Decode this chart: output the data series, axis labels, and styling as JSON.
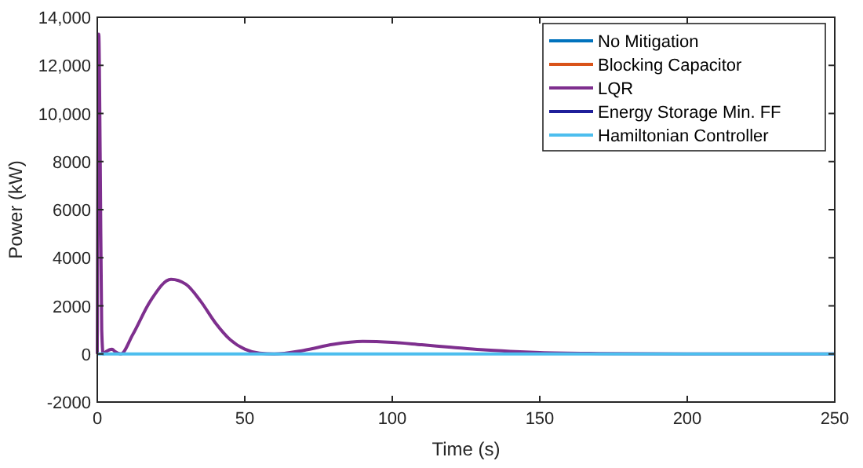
{
  "chart_data": {
    "type": "line",
    "xlabel": "Time (s)",
    "ylabel": "Power (kW)",
    "xlim": [
      0,
      250
    ],
    "xticks": [
      0,
      50,
      100,
      150,
      200,
      250
    ],
    "ylim": [
      -2000,
      14000
    ],
    "yticks": [
      {
        "value": -2000,
        "label": "-2000"
      },
      {
        "value": 0,
        "label": "0"
      },
      {
        "value": 2000,
        "label": "2000"
      },
      {
        "value": 4000,
        "label": "4000"
      },
      {
        "value": 6000,
        "label": "6000"
      },
      {
        "value": 8000,
        "label": "8000"
      },
      {
        "value": 10000,
        "label": "10,000"
      },
      {
        "value": 12000,
        "label": "12,000"
      },
      {
        "value": 14000,
        "label": "14,000"
      }
    ],
    "grid": false,
    "legend": "top right",
    "series": [
      {
        "name": "No Mitigation",
        "color": "#0072bd"
      },
      {
        "name": "Blocking Capacitor",
        "color": "#d95319"
      },
      {
        "name": "LQR",
        "color": "#7e2f8e",
        "x": [
          0,
          0.5,
          1,
          1.5,
          2,
          3,
          5,
          6,
          8,
          12,
          18,
          25,
          30,
          35,
          40,
          45,
          50,
          55,
          60,
          70,
          80,
          90,
          100,
          110,
          120,
          130,
          140,
          150,
          170,
          200,
          250
        ],
        "values": [
          0,
          13300,
          8000,
          1000,
          0,
          100,
          200,
          100,
          0,
          800,
          2200,
          3100,
          2900,
          2200,
          1300,
          600,
          200,
          30,
          0,
          150,
          400,
          520,
          480,
          380,
          280,
          180,
          110,
          60,
          20,
          0,
          0
        ]
      },
      {
        "name": "Energy Storage Min. FF",
        "color": "#1f1f9a"
      },
      {
        "name": "Hamiltonian Controller",
        "color": "#4dbeee",
        "x": [
          0,
          250
        ],
        "values": [
          0,
          0
        ]
      }
    ]
  }
}
